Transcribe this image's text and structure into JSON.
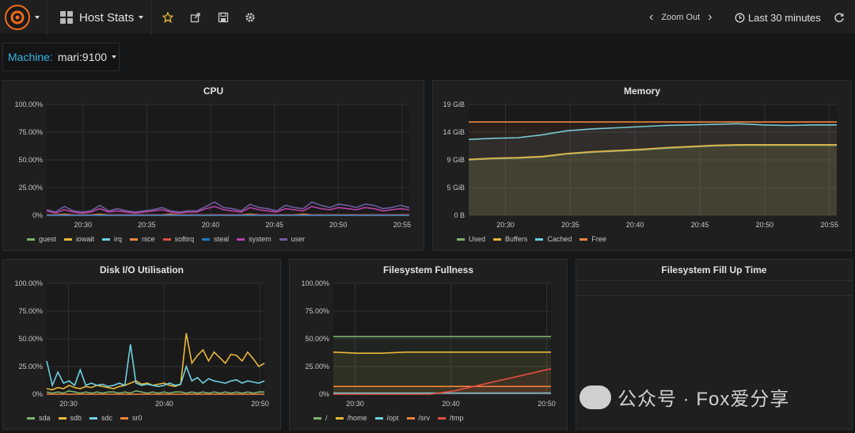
{
  "navbar": {
    "dashboard_title": "Host Stats",
    "zoom_out_label": "Zoom Out",
    "time_range": "Last 30 minutes"
  },
  "variables": {
    "label": "Machine:",
    "value": "mari:9100"
  },
  "icons": {
    "logo": "grafana-logo-icon",
    "star": "star-icon",
    "share": "share-icon",
    "save": "save-icon",
    "settings": "gear-icon",
    "clock": "clock-icon",
    "refresh": "refresh-icon",
    "zoom_left": "chevron-left-icon",
    "zoom_right": "chevron-right-icon"
  },
  "panels": {
    "cpu": {
      "title": "CPU"
    },
    "memory": {
      "title": "Memory"
    },
    "disk": {
      "title": "Disk I/O Utilisation"
    },
    "fs": {
      "title": "Filesystem Fullness"
    },
    "fill": {
      "title": "Filesystem Fill Up Time"
    }
  },
  "watermark": "公众号 · Fox爱分享",
  "chart_data": [
    {
      "id": "cpu",
      "type": "line",
      "title": "CPU",
      "x_ticks": [
        "20:30",
        "20:35",
        "20:40",
        "20:45",
        "20:50",
        "20:55"
      ],
      "y_ticks": [
        "0%",
        "25.00%",
        "50.00%",
        "75.00%",
        "100.00%"
      ],
      "ylim": [
        0,
        100
      ],
      "series": [
        {
          "name": "guest",
          "color": "#7eb26d",
          "values": [
            0,
            0,
            0,
            0,
            0,
            0,
            0,
            0,
            0,
            0,
            0,
            0,
            0,
            0,
            0,
            0,
            0,
            0,
            0,
            0,
            0,
            0,
            0,
            0,
            0,
            0,
            0,
            0,
            0,
            0,
            0,
            0,
            0,
            0,
            0,
            0,
            0,
            0,
            0,
            0,
            0,
            0
          ]
        },
        {
          "name": "iowait",
          "color": "#eab839",
          "values": [
            0.5,
            0.5,
            1,
            0.5,
            0.5,
            0.5,
            1,
            0.5,
            0.5,
            0.5,
            0.5,
            0.5,
            0.5,
            0.5,
            1,
            0.5,
            0.5,
            0.5,
            0.5,
            0.5,
            0.5,
            0.5,
            0.5,
            1,
            0.5,
            0.5,
            0.5,
            0.5,
            0.5,
            1,
            0.5,
            0.5,
            0.5,
            0.5,
            0.5,
            0.5,
            0.5,
            0.5,
            0.5,
            0.5,
            0.5,
            0.5
          ]
        },
        {
          "name": "irq",
          "color": "#6ed0e0",
          "values": [
            0,
            0,
            0,
            0,
            0,
            0,
            0,
            0,
            0,
            0,
            0,
            0,
            0,
            0,
            0,
            0,
            0,
            0,
            0,
            0,
            0,
            0,
            0,
            0,
            0,
            0,
            0,
            0,
            0,
            0,
            0,
            0,
            0,
            0,
            0,
            0,
            0,
            0,
            0,
            0,
            0,
            0
          ]
        },
        {
          "name": "nice",
          "color": "#ef843c",
          "values": [
            0,
            0,
            0,
            0,
            0,
            0,
            0,
            0,
            0,
            0,
            0,
            0,
            0,
            0,
            0,
            0,
            0,
            0,
            0,
            0,
            0,
            0,
            0,
            0,
            0,
            0,
            0,
            0,
            0,
            0,
            0,
            0,
            0,
            0,
            0,
            0,
            0,
            0,
            0,
            0,
            0,
            0
          ]
        },
        {
          "name": "softirq",
          "color": "#e24d42",
          "values": [
            0.5,
            0.5,
            0.5,
            0.5,
            0.5,
            0.5,
            0.5,
            0.5,
            0.5,
            0.5,
            0.5,
            0.5,
            0.5,
            0.5,
            0.5,
            0.5,
            0.5,
            0.5,
            0.5,
            0.5,
            0.5,
            0.5,
            0.5,
            0.5,
            0.5,
            0.5,
            0.5,
            0.5,
            0.5,
            0.5,
            0.5,
            0.5,
            0.5,
            0.5,
            0.5,
            0.5,
            0.5,
            0.5,
            0.5,
            0.5,
            0.5,
            0.5
          ]
        },
        {
          "name": "steal",
          "color": "#1f78c1",
          "values": [
            0,
            0,
            0,
            0,
            0,
            0,
            0,
            0,
            0,
            0,
            0,
            0,
            0,
            0,
            0,
            0,
            0,
            0,
            0,
            0,
            0,
            0,
            0,
            0,
            0,
            0,
            0,
            0,
            0,
            0,
            0,
            0,
            0,
            0,
            0,
            0,
            0,
            0,
            0,
            0,
            0,
            0
          ]
        },
        {
          "name": "system",
          "color": "#ba43a9",
          "values": [
            4,
            2,
            5,
            3,
            2,
            3,
            6,
            3,
            4,
            3,
            2,
            3,
            4,
            5,
            3,
            2,
            3,
            3,
            6,
            8,
            5,
            4,
            3,
            7,
            5,
            4,
            3,
            6,
            5,
            4,
            8,
            6,
            5,
            7,
            6,
            5,
            7,
            6,
            4,
            5,
            6,
            5
          ]
        },
        {
          "name": "user",
          "color": "#705da0",
          "values": [
            5,
            3,
            8,
            4,
            3,
            4,
            9,
            4,
            6,
            4,
            3,
            4,
            5,
            7,
            4,
            3,
            4,
            4,
            8,
            12,
            7,
            6,
            4,
            10,
            7,
            6,
            4,
            9,
            7,
            6,
            12,
            9,
            7,
            10,
            9,
            7,
            10,
            9,
            6,
            7,
            9,
            7
          ]
        }
      ]
    },
    {
      "id": "memory",
      "type": "area",
      "title": "Memory",
      "x_ticks": [
        "20:30",
        "20:35",
        "20:40",
        "20:45",
        "20:50",
        "20:55"
      ],
      "y_ticks": [
        "0 B",
        "5 GiB",
        "9 GiB",
        "14 GiB",
        "19 GiB"
      ],
      "ylim": [
        0,
        19
      ],
      "series": [
        {
          "name": "Used",
          "color": "#7eb26d",
          "values": [
            9.5,
            9.7,
            9.8,
            10,
            10.5,
            10.8,
            11,
            11.2,
            11.5,
            11.7,
            11.9,
            12,
            12,
            12,
            12,
            12
          ]
        },
        {
          "name": "Buffers",
          "color": "#eab839",
          "values": [
            9.6,
            9.8,
            9.9,
            10.1,
            10.6,
            10.9,
            11.1,
            11.3,
            11.6,
            11.8,
            12,
            12.1,
            12.1,
            12.1,
            12.1,
            12.1
          ]
        },
        {
          "name": "Cached",
          "color": "#6ed0e0",
          "values": [
            13,
            13.2,
            13.3,
            13.8,
            14.5,
            14.8,
            15,
            15.2,
            15.4,
            15.5,
            15.6,
            15.7,
            15.5,
            15.4,
            15.5,
            15.5
          ]
        },
        {
          "name": "Free",
          "color": "#ef843c",
          "values": [
            16,
            16,
            16,
            16,
            16,
            16,
            16,
            16,
            16,
            16,
            16,
            16,
            16,
            16,
            16,
            16
          ]
        }
      ]
    },
    {
      "id": "disk",
      "type": "line",
      "title": "Disk I/O Utilisation",
      "x_ticks": [
        "20:30",
        "20:40",
        "20:50"
      ],
      "y_ticks": [
        "0%",
        "25.00%",
        "50.00%",
        "75.00%",
        "100.00%"
      ],
      "ylim": [
        0,
        100
      ],
      "series": [
        {
          "name": "sda",
          "color": "#7eb26d",
          "values": [
            2,
            1,
            2,
            1,
            3,
            2,
            1,
            2,
            1,
            2,
            1,
            2,
            2,
            1,
            2,
            1,
            3,
            2,
            1,
            2,
            1,
            2,
            1,
            2,
            2,
            1,
            2,
            1,
            2,
            1,
            2,
            1,
            2,
            1,
            2,
            1,
            2,
            1,
            2,
            2
          ]
        },
        {
          "name": "sdb",
          "color": "#eab839",
          "values": [
            5,
            4,
            6,
            5,
            8,
            6,
            5,
            7,
            6,
            8,
            7,
            6,
            5,
            7,
            8,
            10,
            12,
            9,
            10,
            8,
            9,
            10,
            8,
            7,
            9,
            55,
            28,
            35,
            40,
            30,
            38,
            33,
            28,
            36,
            35,
            30,
            38,
            32,
            25,
            28
          ]
        },
        {
          "name": "sdc",
          "color": "#6ed0e0",
          "values": [
            30,
            8,
            20,
            10,
            12,
            8,
            22,
            8,
            10,
            8,
            9,
            7,
            8,
            10,
            8,
            45,
            10,
            8,
            9,
            8,
            7,
            8,
            10,
            8,
            9,
            25,
            12,
            15,
            10,
            14,
            12,
            11,
            10,
            12,
            13,
            10,
            12,
            11,
            10,
            12
          ]
        },
        {
          "name": "sr0",
          "color": "#ef843c",
          "values": [
            0,
            0,
            0,
            0,
            0,
            0,
            0,
            0,
            0,
            0,
            0,
            0,
            0,
            0,
            0,
            0,
            0,
            0,
            0,
            0,
            0,
            0,
            0,
            0,
            0,
            0,
            0,
            0,
            0,
            0,
            0,
            0,
            0,
            0,
            0,
            0,
            0,
            0,
            0,
            0
          ]
        }
      ]
    },
    {
      "id": "fs",
      "type": "area",
      "title": "Filesystem Fullness",
      "x_ticks": [
        "20:30",
        "20:40",
        "20:50"
      ],
      "y_ticks": [
        "0%",
        "25.00%",
        "50.00%",
        "75.00%",
        "100.00%"
      ],
      "ylim": [
        0,
        100
      ],
      "series": [
        {
          "name": "/",
          "color": "#7eb26d",
          "values": [
            52,
            52,
            52,
            52,
            52,
            52,
            52,
            52,
            52,
            52
          ]
        },
        {
          "name": "/home",
          "color": "#eab839",
          "values": [
            38,
            37,
            37,
            38,
            38,
            38,
            38,
            38,
            38,
            38
          ]
        },
        {
          "name": "/opt",
          "color": "#6ed0e0",
          "values": [
            1,
            1,
            1,
            1,
            1,
            1,
            1,
            1,
            1,
            1
          ]
        },
        {
          "name": "/srv",
          "color": "#ef843c",
          "values": [
            7,
            7,
            7,
            7,
            7,
            7,
            7,
            7,
            7,
            7
          ]
        },
        {
          "name": "/tmp",
          "color": "#e24d42",
          "values": [
            0,
            0,
            0,
            0,
            0,
            3,
            8,
            13,
            18,
            23
          ]
        }
      ]
    }
  ]
}
